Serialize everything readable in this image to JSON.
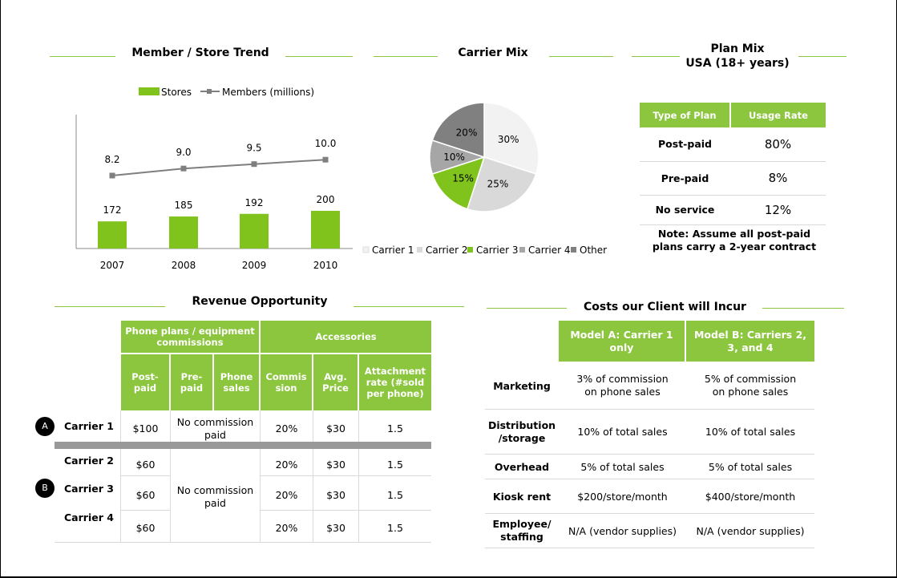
{
  "titles": {
    "member_trend": "Member / Store Trend",
    "carrier_mix": "Carrier Mix",
    "plan_mix_1": "Plan Mix",
    "plan_mix_2": "USA (18+ years)",
    "revenue": "Revenue Opportunity",
    "costs": "Costs our Client will Incur"
  },
  "chart_data": [
    {
      "type": "bar",
      "categories": [
        "2007",
        "2008",
        "2009",
        "2010"
      ],
      "series": [
        {
          "name": "Stores",
          "type": "bar",
          "values": [
            172,
            185,
            192,
            200
          ]
        },
        {
          "name": "Members (millions)",
          "type": "line",
          "values": [
            8.2,
            9.0,
            9.5,
            10.0
          ]
        }
      ],
      "colors": {
        "bar": "#80c31c",
        "line": "#7f7f7f"
      }
    },
    {
      "type": "pie",
      "labels": [
        "Carrier 1",
        "Carrier 2",
        "Carrier 3",
        "Carrier 4",
        "Other"
      ],
      "values": [
        30,
        25,
        15,
        10,
        20
      ],
      "value_labels": [
        "30%",
        "25%",
        "15%",
        "10%",
        "20%"
      ],
      "colors": [
        "#f2f2f2",
        "#d9d9d9",
        "#80c31c",
        "#a6a6a6",
        "#808080"
      ]
    }
  ],
  "plan_mix": {
    "headers": [
      "Type of Plan",
      "Usage Rate"
    ],
    "rows": [
      {
        "plan": "Post-paid",
        "rate": "80%"
      },
      {
        "plan": "Pre-paid",
        "rate": "8%"
      },
      {
        "plan": "No service",
        "rate": "12%"
      }
    ],
    "note": "Note: Assume all post-paid plans carry a 2-year contract"
  },
  "revenue": {
    "group1": "Phone plans / equipment commissions",
    "group2": "Accessories",
    "cols": [
      "Post-paid",
      "Pre-paid",
      "Phone sales",
      "Commission",
      "Avg. Price",
      "Attachment rate (#sold per phone)"
    ],
    "cols_display": [
      "Post-\npaid",
      "Pre-\npaid",
      "Phone\nsales",
      "Commis\nsion",
      "Avg.\nPrice",
      "Attachment\nrate (#sold\nper phone)"
    ],
    "no_commission": "No commission paid",
    "marker_a": "A",
    "marker_b": "B",
    "rows": [
      {
        "carrier": "Carrier 1",
        "postpaid": "$100",
        "commission": "20%",
        "price": "$30",
        "attach": "1.5"
      },
      {
        "carrier": "Carrier 2",
        "postpaid": "$60",
        "commission": "20%",
        "price": "$30",
        "attach": "1.5"
      },
      {
        "carrier": "Carrier 3",
        "postpaid": "$60",
        "commission": "20%",
        "price": "$30",
        "attach": "1.5"
      },
      {
        "carrier": "Carrier 4",
        "postpaid": "$60",
        "commission": "20%",
        "price": "$30",
        "attach": "1.5"
      }
    ]
  },
  "costs": {
    "headers": [
      "Model A: Carrier 1 only",
      "Model B:  Carriers 2, 3, and 4"
    ],
    "rows": [
      {
        "label": "Marketing",
        "a": "3% of commission on phone sales",
        "b": "5% of commission on phone sales"
      },
      {
        "label": "Distribution /storage",
        "a": "10% of total sales",
        "b": "10% of total sales"
      },
      {
        "label": "Overhead",
        "a": "5% of total sales",
        "b": "5% of total sales"
      },
      {
        "label": "Kiosk rent",
        "a": "$200/store/month",
        "b": "$400/store/month"
      },
      {
        "label": "Employee/ staffing",
        "a": "N/A (vendor supplies)",
        "b": "N/A (vendor supplies)"
      }
    ]
  }
}
